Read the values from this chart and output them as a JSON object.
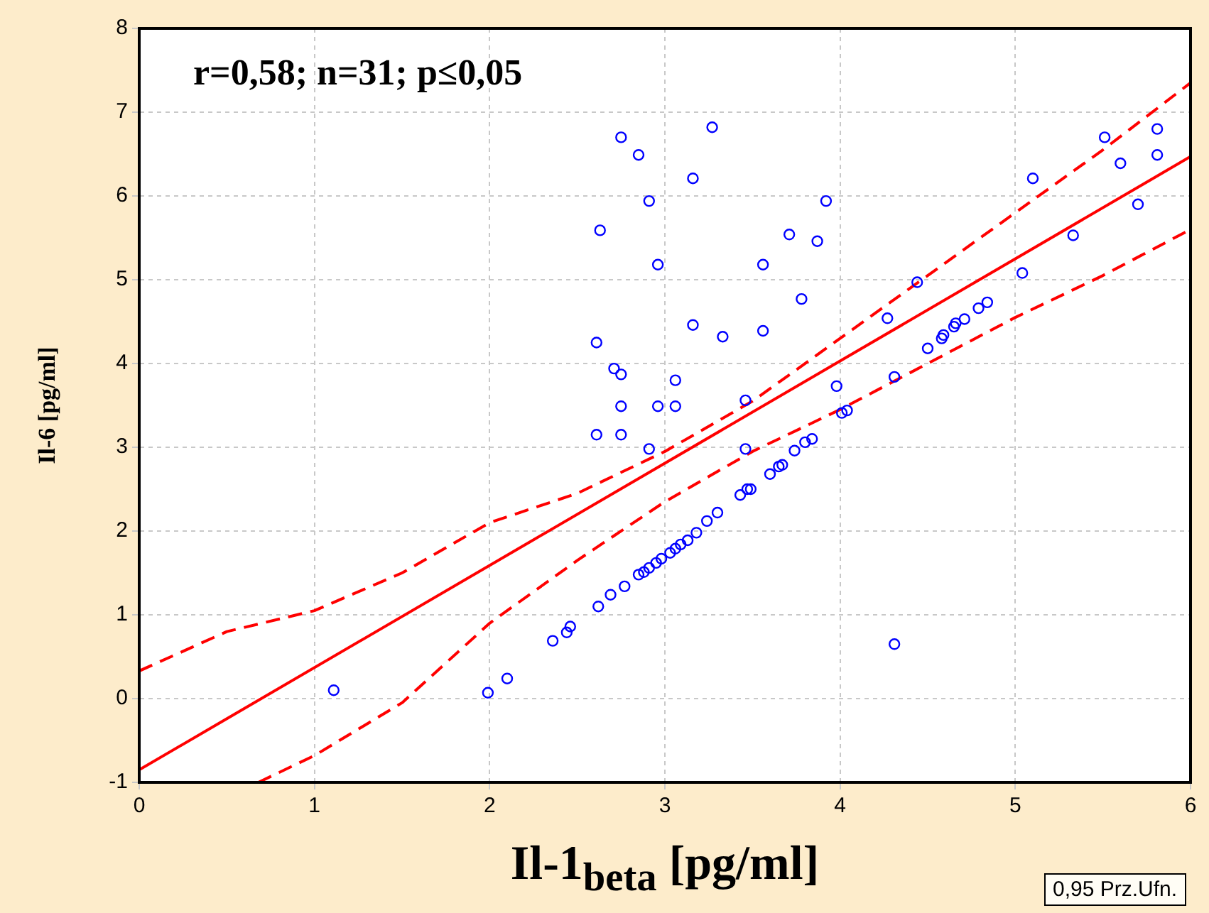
{
  "chart_data": {
    "type": "scatter",
    "xlabel": "Il-1$_{beta}$ [pg/ml]",
    "ylabel": "Il-6 [pg/ml]",
    "annotations": [
      "r=0,58; n=31; p≤0,05",
      "0,95 Prz.Ufn."
    ],
    "xlim": [
      0,
      6
    ],
    "xticks": [
      0,
      1,
      2,
      3,
      4,
      5,
      6
    ],
    "ylim": [
      -1,
      8
    ],
    "yticks": [
      -1,
      0,
      1,
      2,
      3,
      4,
      5,
      6,
      7,
      8
    ],
    "grid": true,
    "legend": false,
    "series": [
      {
        "type": "scatter",
        "color": "#0000ff",
        "marker": "circle",
        "x": [
          1.11,
          1.99,
          2.1,
          2.36,
          2.44,
          2.46,
          2.62,
          2.69,
          2.77,
          2.85,
          2.88,
          2.91,
          2.95,
          2.98,
          3.03,
          3.06,
          3.09,
          3.13,
          3.18,
          3.24,
          3.3,
          3.43,
          3.47,
          3.49,
          3.6,
          3.65,
          3.67,
          3.74,
          3.8,
          3.84,
          3.46,
          3.98,
          4.01,
          4.04,
          4.27,
          4.44,
          4.31,
          4.5,
          4.58,
          4.59,
          4.65,
          4.66,
          4.71,
          4.79,
          4.84,
          5.04,
          5.1,
          5.33,
          5.51,
          5.6,
          5.7,
          5.81,
          5.81,
          4.31,
          2.75,
          2.85,
          3.16,
          3.27,
          2.91,
          2.63,
          2.96,
          3.71,
          3.92,
          3.87,
          3.56,
          3.78,
          3.16,
          3.33,
          3.56,
          2.61,
          2.71,
          2.75,
          3.06,
          2.75,
          2.96,
          3.06,
          2.61,
          2.75,
          2.91,
          3.46
        ],
        "values": [
          0.1,
          0.07,
          0.24,
          0.69,
          0.79,
          0.86,
          1.1,
          1.24,
          1.34,
          1.48,
          1.51,
          1.56,
          1.62,
          1.67,
          1.74,
          1.79,
          1.84,
          1.89,
          1.98,
          2.12,
          2.22,
          2.43,
          2.5,
          2.5,
          2.68,
          2.77,
          2.79,
          2.96,
          3.06,
          3.1,
          2.98,
          3.73,
          3.41,
          3.44,
          4.54,
          4.97,
          3.84,
          4.18,
          4.3,
          4.34,
          4.44,
          4.48,
          4.53,
          4.66,
          4.73,
          5.08,
          6.21,
          5.53,
          6.7,
          6.39,
          5.9,
          6.49,
          6.8,
          0.65,
          6.7,
          6.49,
          6.21,
          6.82,
          5.94,
          5.59,
          5.18,
          5.54,
          5.94,
          5.46,
          5.18,
          4.77,
          4.46,
          4.32,
          4.39,
          4.25,
          3.94,
          3.87,
          3.8,
          3.49,
          3.49,
          3.49,
          3.15,
          3.15,
          2.98,
          3.56
        ]
      },
      {
        "type": "line",
        "color": "#ff0000",
        "line_style": "solid",
        "marker": "none",
        "x": [
          0,
          6
        ],
        "values": [
          -0.85,
          6.47
        ]
      },
      {
        "type": "line",
        "color": "#ff0000",
        "line_style": "dashed",
        "marker": "none",
        "x": [
          0,
          0.5,
          1,
          1.5,
          2,
          2.5,
          3,
          3.5,
          4,
          4.5,
          5,
          5.5,
          6
        ],
        "values": [
          0.33,
          0.8,
          1.05,
          1.5,
          2.1,
          2.45,
          2.95,
          3.55,
          4.3,
          5.05,
          5.8,
          6.55,
          7.35
        ]
      },
      {
        "type": "line",
        "color": "#ff0000",
        "line_style": "dashed",
        "marker": "none",
        "x": [
          0.68,
          1,
          1.5,
          2,
          2.5,
          3,
          3.5,
          4,
          4.5,
          5,
          5.5,
          6
        ],
        "values": [
          -1,
          -0.68,
          -0.05,
          0.9,
          1.65,
          2.35,
          2.95,
          3.45,
          4.0,
          4.55,
          5.05,
          5.6
        ]
      }
    ]
  }
}
